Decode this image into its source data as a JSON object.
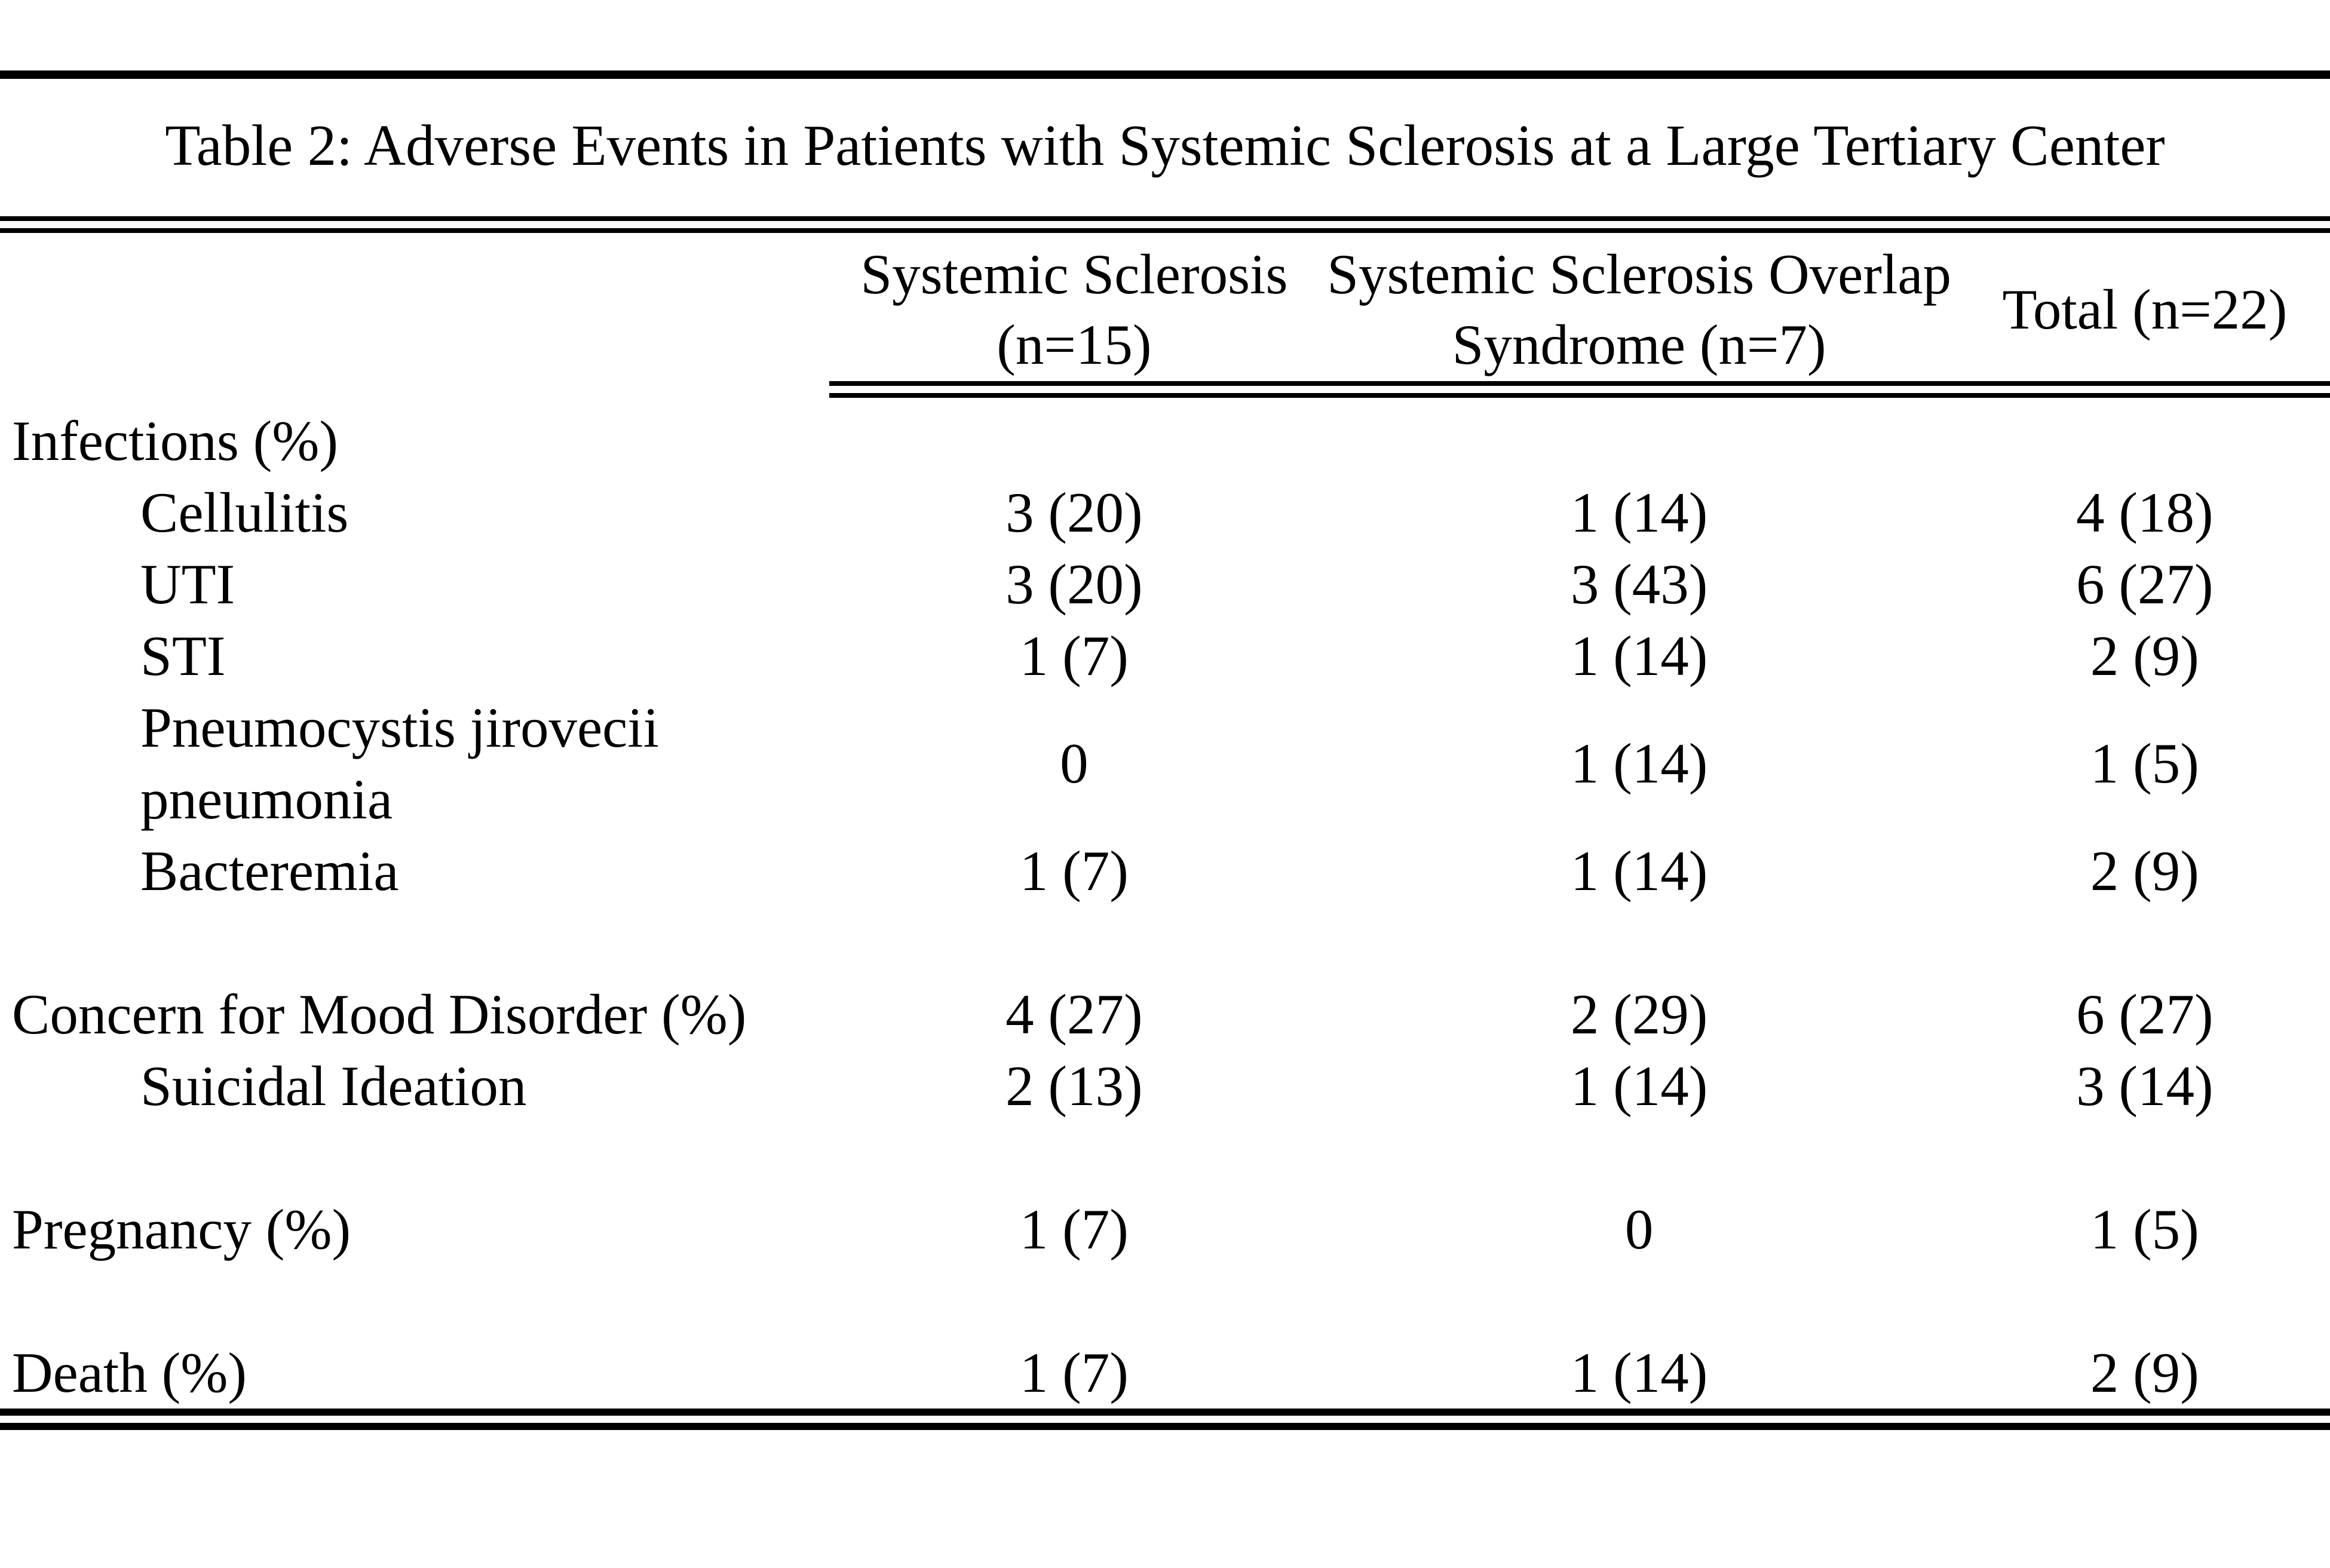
{
  "colors": {
    "text": "#000000",
    "background": "#ffffff"
  },
  "table": {
    "title": "Table 2: Adverse Events in Patients with Systemic Sclerosis at a Large Tertiary Center",
    "columns": [
      {
        "line1": "Systemic Sclerosis",
        "line2": "(n=15)"
      },
      {
        "line1": "Systemic Sclerosis Overlap",
        "line2": "Syndrome (n=7)"
      },
      {
        "line1": "Total (n=22)",
        "line2": ""
      }
    ],
    "rows": [
      {
        "label": "Infections (%)",
        "indent": false,
        "values": [
          "",
          "",
          ""
        ]
      },
      {
        "label": "Cellulitis",
        "indent": true,
        "values": [
          "3 (20)",
          "1 (14)",
          "4 (18)"
        ]
      },
      {
        "label": "UTI",
        "indent": true,
        "values": [
          "3 (20)",
          "3 (43)",
          "6 (27)"
        ]
      },
      {
        "label": "STI",
        "indent": true,
        "values": [
          "1 (7)",
          "1 (14)",
          "2 (9)"
        ]
      },
      {
        "label": "Pneumocystis jirovecii pneumonia",
        "indent": true,
        "wrap": true,
        "values": [
          "0",
          "1 (14)",
          "1 (5)"
        ]
      },
      {
        "label": "Bacteremia",
        "indent": true,
        "values": [
          "1 (7)",
          "1 (14)",
          "2 (9)"
        ]
      },
      {
        "spacer": true
      },
      {
        "label": "Concern for Mood Disorder (%)",
        "indent": false,
        "values": [
          "4 (27)",
          "2 (29)",
          "6 (27)"
        ]
      },
      {
        "label": "Suicidal Ideation",
        "indent": true,
        "values": [
          "2 (13)",
          "1 (14)",
          "3 (14)"
        ]
      },
      {
        "spacer": true
      },
      {
        "label": "Pregnancy (%)",
        "indent": false,
        "values": [
          "1 (7)",
          "0",
          "1 (5)"
        ]
      },
      {
        "spacer": true
      },
      {
        "label": "Death (%)",
        "indent": false,
        "values": [
          "1 (7)",
          "1 (14)",
          "2 (9)"
        ]
      }
    ]
  }
}
